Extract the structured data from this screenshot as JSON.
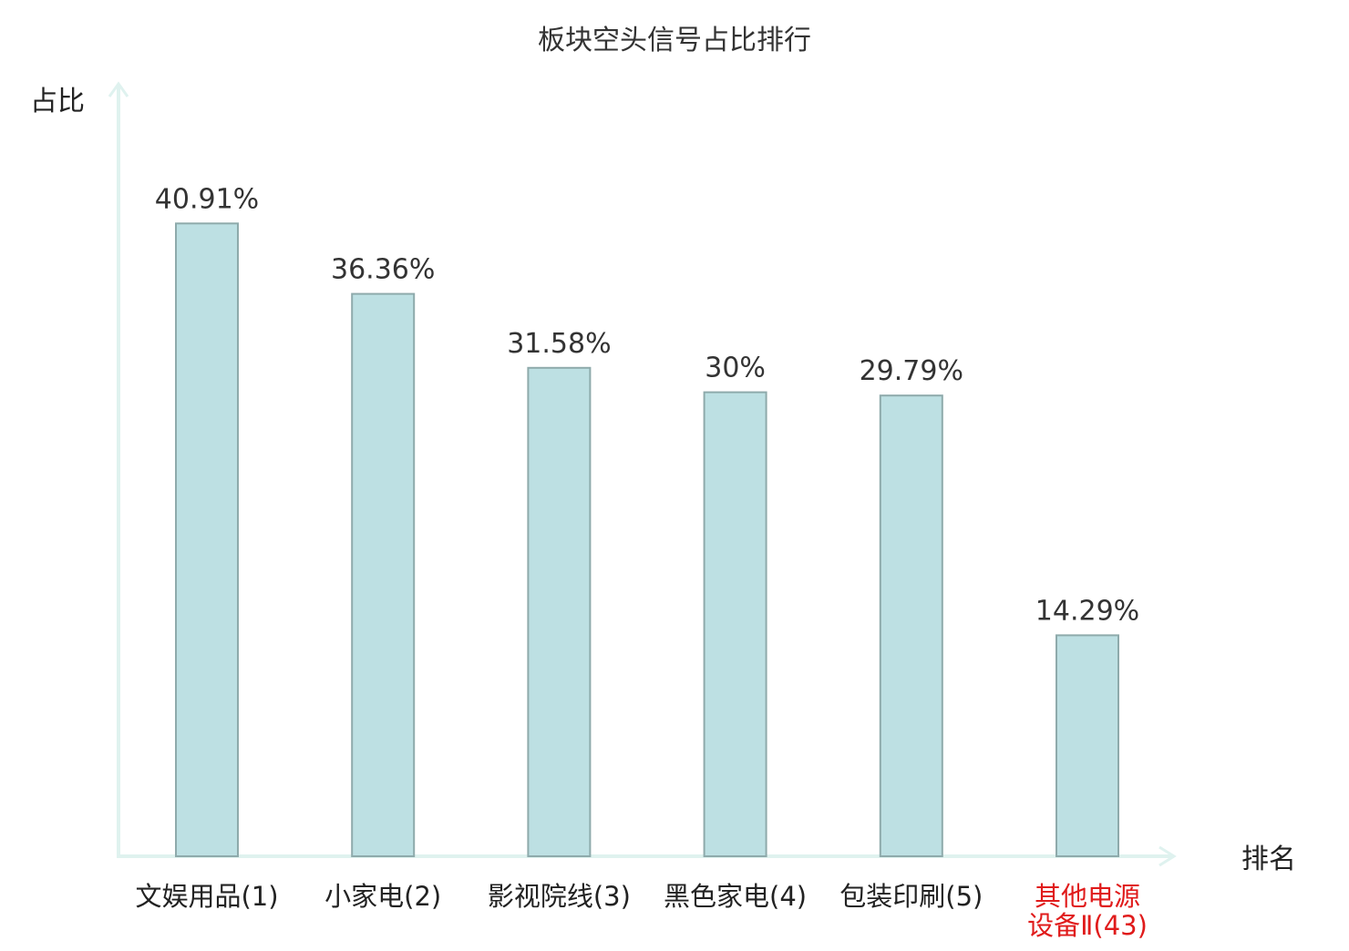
{
  "chart_data": {
    "type": "bar",
    "title": "板块空头信号占比排行",
    "ylabel": "占比",
    "xlabel": "排名",
    "categories": [
      {
        "name": "文娱用品",
        "rank": "(1)",
        "highlight": false
      },
      {
        "name": "小家电",
        "rank": "(2)",
        "highlight": false
      },
      {
        "name": "影视院线",
        "rank": "(3)",
        "highlight": false
      },
      {
        "name": "黑色家电",
        "rank": "(4)",
        "highlight": false
      },
      {
        "name": "包装印刷",
        "rank": "(5)",
        "highlight": false
      },
      {
        "name_lines": [
          "其他电源",
          "设备Ⅱ"
        ],
        "rank": "(43)",
        "highlight": true
      }
    ],
    "values": [
      40.91,
      36.36,
      31.58,
      30,
      29.79,
      14.29
    ],
    "value_labels": [
      "40.91%",
      "36.36%",
      "31.58%",
      "30%",
      "29.79%",
      "14.29%"
    ],
    "ylim": [
      0,
      45
    ],
    "grid": false,
    "legend": "none",
    "colors": {
      "bar_fill": "#bde0e3",
      "bar_stroke": "#8eaaab",
      "axis": "#dff2ef",
      "text": "#333333",
      "label_text": "#222222",
      "highlight_text": "#e01b1b"
    }
  }
}
